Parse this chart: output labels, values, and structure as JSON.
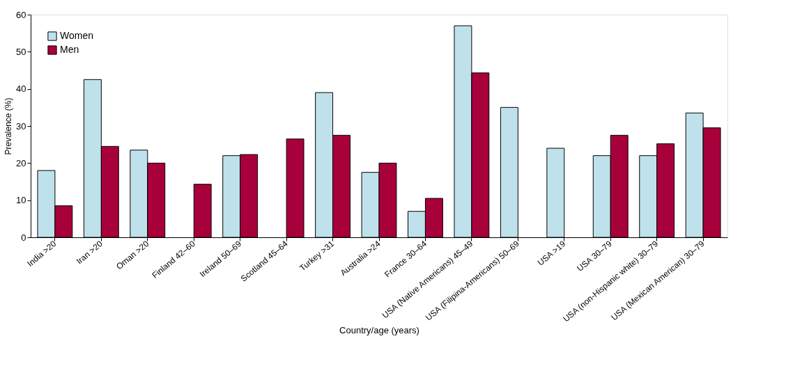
{
  "chart_data": {
    "type": "bar",
    "xlabel": "Country/age (years)",
    "ylabel": "Prevalence (%)",
    "categories": [
      "India >20",
      "Iran >20",
      "Oman >20",
      "Finland 42–60",
      "Ireland  50–69",
      "Scotland  45–64",
      "Turkey >31",
      "Australia >24",
      "France 30–64",
      "USA (Native Americans) 45–49",
      "USA (Filipina-Americans) 50–69",
      "USA >19",
      "USA  30–79",
      "USA (non-Hispanic white) 30–79",
      "USA (Mexican American) 30–79"
    ],
    "series": [
      {
        "name": "Women",
        "color": "#bfe1ec",
        "values": [
          18,
          42.5,
          23.5,
          null,
          22,
          null,
          39,
          17.5,
          7,
          57,
          35,
          24,
          22,
          22,
          33.5
        ]
      },
      {
        "name": "Men",
        "color": "#a8003b",
        "values": [
          8.5,
          24.5,
          20,
          14.3,
          22.3,
          26.5,
          27.5,
          20,
          10.5,
          44.3,
          null,
          null,
          27.5,
          25.2,
          29.5
        ]
      }
    ],
    "ylim": [
      0,
      60
    ],
    "yticks": [
      0,
      10,
      20,
      30,
      40,
      50,
      60
    ],
    "grid": false,
    "legend": "top left"
  }
}
